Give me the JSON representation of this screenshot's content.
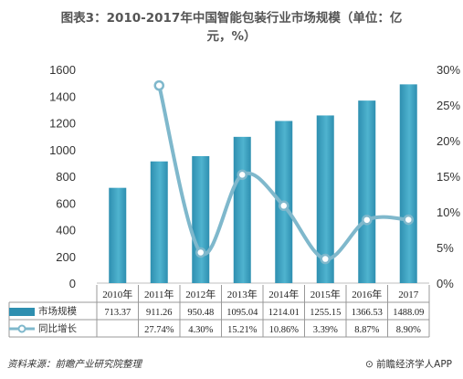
{
  "title_line1": "图表3：2010-2017年中国智能包装行业市场规模（单位：亿",
  "title_line2": "元，%）",
  "table": {
    "row1_label": "市场规模",
    "row2_label": "同比增长"
  },
  "source": "资料来源：前瞻产业研究院整理",
  "brand": "前瞻经济学人APP",
  "colors": {
    "bar": "#2e8fb0",
    "bar_light": "#4fb3cf",
    "line": "#7fb8cc",
    "marker_fill": "#ffffff"
  },
  "chart_data": {
    "type": "bar",
    "categories": [
      "2010年",
      "2011年",
      "2012年",
      "2013年",
      "2014年",
      "2015年",
      "2016年",
      "2017"
    ],
    "series": [
      {
        "name": "市场规模",
        "type": "bar",
        "axis": "left",
        "values": [
          713.37,
          911.26,
          950.48,
          1095.04,
          1214.01,
          1255.15,
          1366.53,
          1488.09
        ],
        "labels": [
          "713.37",
          "911.26",
          "950.48",
          "1095.04",
          "1214.01",
          "1255.15",
          "1366.53",
          "1488.09"
        ]
      },
      {
        "name": "同比增长",
        "type": "line",
        "axis": "right",
        "values": [
          null,
          27.74,
          4.3,
          15.21,
          10.86,
          3.39,
          8.87,
          8.9
        ],
        "labels": [
          "",
          "27.74%",
          "4.30%",
          "15.21%",
          "10.86%",
          "3.39%",
          "8.87%",
          "8.90%"
        ]
      }
    ],
    "y_left": {
      "ylim": [
        0,
        1600
      ],
      "ticks": [
        "0",
        "200",
        "400",
        "600",
        "800",
        "1000",
        "1200",
        "1400",
        "1600"
      ]
    },
    "y_right": {
      "ylim": [
        0,
        30
      ],
      "ticks": [
        "0%",
        "5%",
        "10%",
        "15%",
        "20%",
        "25%",
        "30%"
      ]
    },
    "grid": false,
    "legend": "table-below"
  }
}
